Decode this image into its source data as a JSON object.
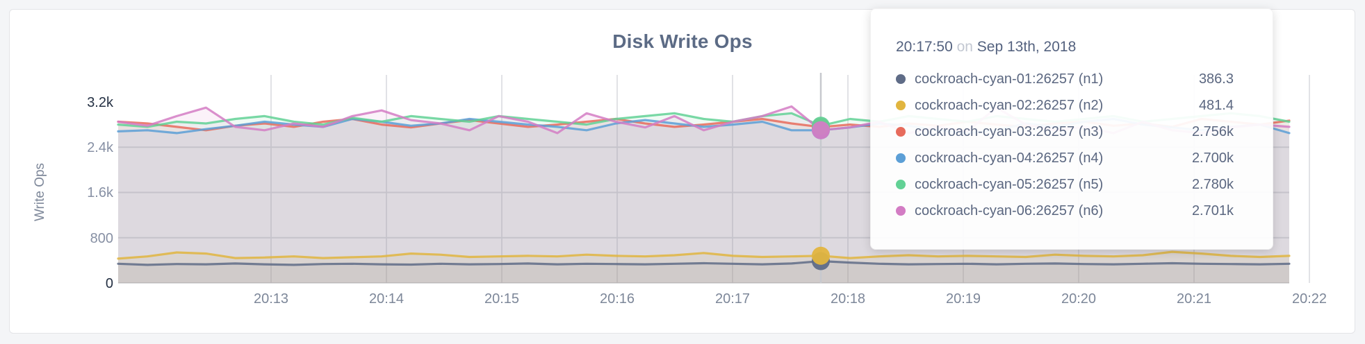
{
  "chart_data": {
    "type": "line",
    "title": "Disk Write Ops",
    "xlabel": "",
    "ylabel": "Write Ops",
    "ylim": [
      0,
      3200
    ],
    "grid": true,
    "legend_position": "tooltip",
    "x_ticks": [
      "20:13",
      "20:14",
      "20:15",
      "20:16",
      "20:17",
      "20:18",
      "20:19",
      "20:20",
      "20:21",
      "20:22"
    ],
    "y_ticks": {
      "labels": [
        "3.2k",
        "2.4k",
        "1.6k",
        "800",
        "0"
      ],
      "values": [
        3200,
        2400,
        1600,
        800,
        0
      ]
    },
    "hover_index": 24,
    "series": [
      {
        "name": "cockroach-cyan-01:26257 (n1)",
        "color": "#5F6C87",
        "hover_value_label": "386.3",
        "values": [
          340,
          320,
          335,
          330,
          345,
          330,
          320,
          335,
          340,
          330,
          325,
          340,
          330,
          335,
          345,
          330,
          340,
          335,
          330,
          340,
          350,
          340,
          330,
          345,
          386,
          360,
          340,
          330,
          335,
          340,
          330,
          340,
          345,
          335,
          330,
          340,
          350,
          340,
          335,
          330,
          340
        ]
      },
      {
        "name": "cockroach-cyan-02:26257 (n2)",
        "color": "#E1B53F",
        "hover_value_label": "481.4",
        "values": [
          430,
          470,
          540,
          520,
          440,
          450,
          470,
          440,
          455,
          470,
          520,
          500,
          460,
          470,
          480,
          470,
          500,
          480,
          470,
          490,
          530,
          480,
          460,
          470,
          481,
          440,
          470,
          490,
          470,
          480,
          470,
          460,
          500,
          480,
          470,
          490,
          550,
          520,
          480,
          460,
          480
        ]
      },
      {
        "name": "cockroach-cyan-03:26257 (n3)",
        "color": "#E76B5C",
        "hover_value_label": "2.756k",
        "values": [
          2850,
          2820,
          2760,
          2700,
          2780,
          2820,
          2760,
          2850,
          2900,
          2800,
          2750,
          2820,
          2880,
          2820,
          2760,
          2800,
          2850,
          2900,
          2820,
          2760,
          2800,
          2850,
          2900,
          2820,
          2756,
          2800,
          2760,
          2820,
          2780,
          2850,
          2800,
          2760,
          2820,
          2850,
          2780,
          2820,
          2760,
          2900,
          2850,
          2800,
          2870
        ]
      },
      {
        "name": "cockroach-cyan-04:26257 (n4)",
        "color": "#5C9FD6",
        "hover_value_label": "2.700k",
        "values": [
          2680,
          2700,
          2650,
          2720,
          2780,
          2850,
          2800,
          2760,
          2900,
          2850,
          2780,
          2820,
          2900,
          2850,
          2800,
          2760,
          2700,
          2820,
          2880,
          2820,
          2760,
          2800,
          2850,
          2700,
          2700,
          2750,
          2820,
          2780,
          2700,
          2650,
          2700,
          2820,
          2760,
          2850,
          2900,
          2800,
          2750,
          2700,
          2760,
          2800,
          2650
        ]
      },
      {
        "name": "cockroach-cyan-05:26257 (n5)",
        "color": "#62D195",
        "hover_value_label": "2.780k",
        "values": [
          2800,
          2760,
          2850,
          2820,
          2900,
          2950,
          2850,
          2800,
          2920,
          2850,
          2950,
          2900,
          2850,
          2950,
          2900,
          2850,
          2800,
          2900,
          2950,
          3000,
          2900,
          2850,
          2950,
          3000,
          2780,
          2900,
          2850,
          2950,
          2900,
          2850,
          2950,
          2900,
          2850,
          2900,
          2950,
          2850,
          2900,
          2950,
          3000,
          2950,
          2850
        ]
      },
      {
        "name": "cockroach-cyan-06:26257 (n6)",
        "color": "#D37CC4",
        "hover_value_label": "2.701k",
        "values": [
          2850,
          2780,
          2950,
          3100,
          2760,
          2700,
          2820,
          2760,
          2950,
          3050,
          2880,
          2820,
          2700,
          2950,
          2850,
          2650,
          3000,
          2850,
          2750,
          2950,
          2700,
          2850,
          2950,
          3120,
          2701,
          2750,
          2850,
          2650,
          2760,
          2680,
          3100,
          2800,
          2700,
          2760,
          2650,
          2850,
          2700,
          2650,
          2750,
          2800,
          2760
        ]
      }
    ]
  },
  "tooltip": {
    "time": "20:17:50",
    "on_word": "on",
    "date": "Sep 13th, 2018"
  }
}
